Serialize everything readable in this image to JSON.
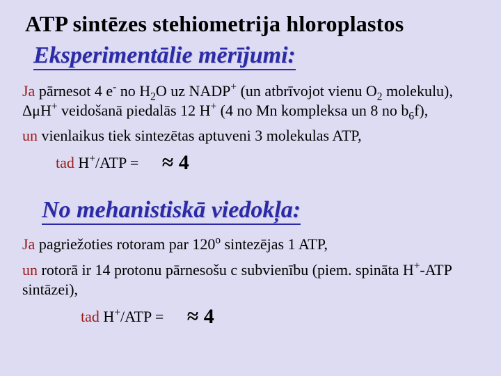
{
  "title": "ATP sintēzes stehiometrija hloroplastos",
  "section1_title": "Eksperimentālie mērījumi:",
  "para1_html": "<span class=\"ja\">Ja</span> pārnesot 4 e<sup>-</sup> no H<sub>2</sub>O uz NADP<sup>+</sup> (un atbrīvojot vienu O<sub>2</sub> molekulu), ΔμH<sup>+</sup> veidošanā piedalās 12 H<sup>+</sup> (4 no Mn kompleksa un 8 no b<sub>6</sub>f),",
  "para2_html": "<span class=\"un\">un</span> vienlaikus tiek sintezētas aptuveni 3 molekulas ATP,",
  "eq1_label_html": "<span class=\"tad\">tad</span> H<sup>+</sup>/ATP =",
  "eq1_value": "≈ 4",
  "section2_title": "No mehanistiskā viedokļa:",
  "para3_html": "<span class=\"ja\">Ja</span> pagriežoties rotoram par 120<sup>o</sup> sintezējas 1 ATP,",
  "para4_html": "<span class=\"un\">un</span> rotorā ir 14 protonu pārnesošu c subvienību (piem. spināta H<sup>+</sup>-ATP sintāzei),",
  "eq2_label_html": "<span class=\"tad\">tad</span> H<sup>+</sup>/ATP =",
  "eq2_value": "≈ 4",
  "colors": {
    "background": "#dedcf2",
    "heading_blue": "#2b2ba7",
    "keyword_red": "#9a1a1a",
    "text_black": "#000000"
  },
  "typography": {
    "title_fontsize": 32,
    "subtitle_fontsize": 34,
    "body_fontsize": 22,
    "approx_fontsize": 30,
    "font_family": "Times New Roman"
  }
}
